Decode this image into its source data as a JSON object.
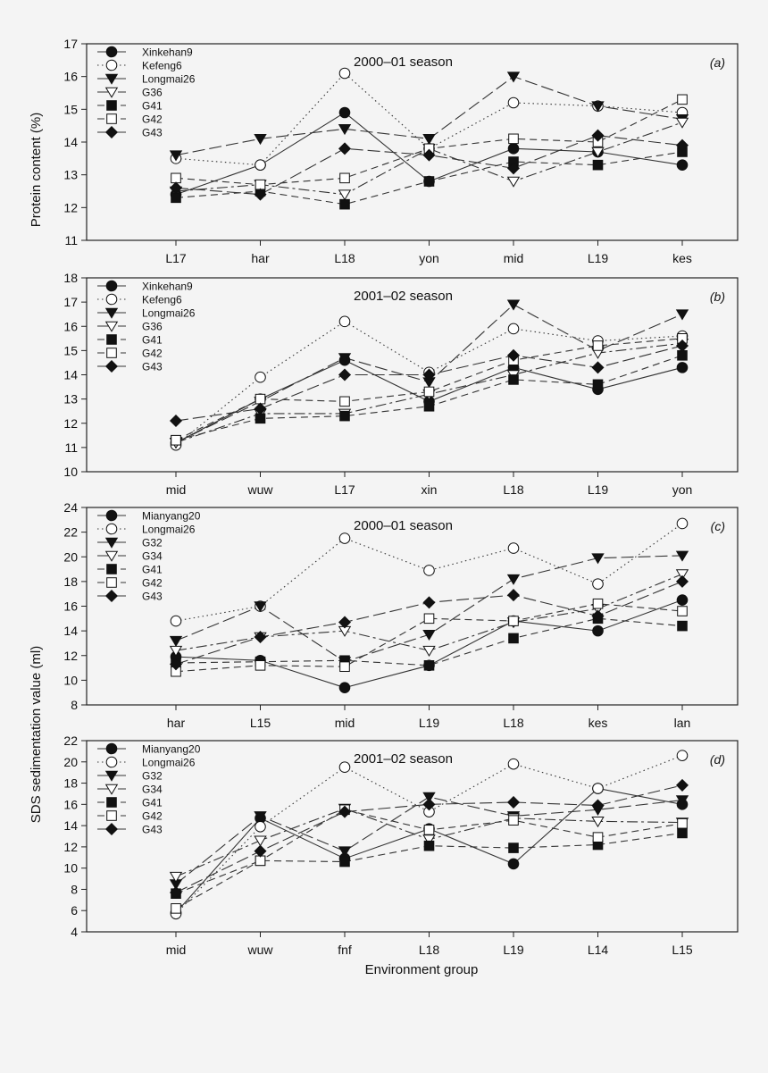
{
  "figure": {
    "ylabel_top": "Protein content (%)",
    "ylabel_bottom": "SDS sedimentation value (ml)",
    "xlabel": "Environment group"
  },
  "chart_data": [
    {
      "type": "line",
      "panel": "(a)",
      "title": "2000–01 season",
      "categories": [
        "L17",
        "har",
        "L18",
        "yon",
        "mid",
        "L19",
        "kes"
      ],
      "ylim": [
        11,
        17
      ],
      "yticks": [
        11,
        12,
        13,
        14,
        15,
        16,
        17
      ],
      "series": [
        {
          "name": "Xinkehan9",
          "marker": "filled-circle",
          "dash": "solid",
          "values": [
            12.4,
            13.3,
            14.9,
            12.8,
            13.8,
            13.7,
            13.3
          ]
        },
        {
          "name": "Kefeng6",
          "marker": "open-circle",
          "dash": "dotted",
          "values": [
            13.5,
            13.3,
            16.1,
            13.8,
            15.2,
            15.1,
            14.9
          ]
        },
        {
          "name": "Longmai26",
          "marker": "filled-triangle",
          "dash": "longdash",
          "values": [
            13.6,
            14.1,
            14.4,
            14.1,
            16.0,
            15.1,
            14.7
          ]
        },
        {
          "name": "G36",
          "marker": "open-triangle",
          "dash": "dashdot",
          "values": [
            12.5,
            12.7,
            12.4,
            13.8,
            12.8,
            13.7,
            14.6
          ]
        },
        {
          "name": "G41",
          "marker": "filled-square",
          "dash": "dashed",
          "values": [
            12.3,
            12.5,
            12.1,
            12.8,
            13.4,
            13.3,
            13.7
          ]
        },
        {
          "name": "G42",
          "marker": "open-square",
          "dash": "dashed",
          "values": [
            12.9,
            12.7,
            12.9,
            13.8,
            14.1,
            14.0,
            15.3
          ]
        },
        {
          "name": "G43",
          "marker": "filled-diamond",
          "dash": "longdash",
          "values": [
            12.6,
            12.4,
            13.8,
            13.6,
            13.2,
            14.2,
            13.9
          ]
        }
      ]
    },
    {
      "type": "line",
      "panel": "(b)",
      "title": "2001–02 season",
      "categories": [
        "mid",
        "wuw",
        "L17",
        "xin",
        "L18",
        "L19",
        "yon"
      ],
      "ylim": [
        10,
        18
      ],
      "yticks": [
        10,
        11,
        12,
        13,
        14,
        15,
        16,
        17,
        18
      ],
      "series": [
        {
          "name": "Xinkehan9",
          "marker": "filled-circle",
          "dash": "solid",
          "values": [
            11.2,
            13.0,
            14.6,
            12.9,
            14.3,
            13.4,
            14.3
          ]
        },
        {
          "name": "Kefeng6",
          "marker": "open-circle",
          "dash": "dotted",
          "values": [
            11.1,
            13.9,
            16.2,
            14.1,
            15.9,
            15.4,
            15.6
          ]
        },
        {
          "name": "Longmai26",
          "marker": "filled-triangle",
          "dash": "longdash",
          "values": [
            11.2,
            12.9,
            14.7,
            13.7,
            16.9,
            15.0,
            16.5
          ]
        },
        {
          "name": "G36",
          "marker": "open-triangle",
          "dash": "dashdot",
          "values": [
            11.2,
            12.4,
            12.4,
            13.2,
            14.0,
            14.9,
            15.3
          ]
        },
        {
          "name": "G41",
          "marker": "filled-square",
          "dash": "dashed",
          "values": [
            11.3,
            12.2,
            12.3,
            12.7,
            13.8,
            13.6,
            14.8
          ]
        },
        {
          "name": "G42",
          "marker": "open-square",
          "dash": "dashed",
          "values": [
            11.3,
            13.0,
            12.9,
            13.3,
            14.6,
            15.2,
            15.5
          ]
        },
        {
          "name": "G43",
          "marker": "filled-diamond",
          "dash": "longdash",
          "values": [
            12.1,
            12.6,
            14.0,
            14.0,
            14.8,
            14.3,
            15.2
          ]
        }
      ]
    },
    {
      "type": "line",
      "panel": "(c)",
      "title": "2000–01 season",
      "categories": [
        "har",
        "L15",
        "mid",
        "L19",
        "L18",
        "kes",
        "lan"
      ],
      "ylim": [
        8,
        24
      ],
      "yticks": [
        8,
        10,
        12,
        14,
        16,
        18,
        20,
        22,
        24
      ],
      "series": [
        {
          "name": "Mianyang20",
          "marker": "filled-circle",
          "dash": "solid",
          "values": [
            11.9,
            11.6,
            9.4,
            11.2,
            14.8,
            14.0,
            16.5
          ]
        },
        {
          "name": "Longmai26",
          "marker": "open-circle",
          "dash": "dotted",
          "values": [
            14.8,
            16.0,
            21.5,
            18.9,
            20.7,
            17.8,
            22.7
          ]
        },
        {
          "name": "G32",
          "marker": "filled-triangle",
          "dash": "longdash",
          "values": [
            13.2,
            16.0,
            11.5,
            13.7,
            18.2,
            19.9,
            20.1
          ]
        },
        {
          "name": "G34",
          "marker": "open-triangle",
          "dash": "dashdot",
          "values": [
            12.4,
            13.5,
            14.0,
            12.4,
            14.7,
            15.8,
            18.6
          ]
        },
        {
          "name": "G41",
          "marker": "filled-square",
          "dash": "dashed",
          "values": [
            11.4,
            11.5,
            11.6,
            11.2,
            13.4,
            15.0,
            14.4
          ]
        },
        {
          "name": "G42",
          "marker": "open-square",
          "dash": "dashed",
          "values": [
            10.7,
            11.2,
            11.1,
            15.0,
            14.8,
            16.2,
            15.6
          ]
        },
        {
          "name": "G43",
          "marker": "filled-diamond",
          "dash": "longdash",
          "values": [
            11.3,
            13.5,
            14.7,
            16.3,
            16.9,
            15.2,
            18.0
          ]
        }
      ]
    },
    {
      "type": "line",
      "panel": "(d)",
      "title": "2001–02 season",
      "categories": [
        "mid",
        "wuw",
        "fnf",
        "L18",
        "L19",
        "L14",
        "L15"
      ],
      "ylim": [
        4,
        22
      ],
      "yticks": [
        4,
        6,
        8,
        10,
        12,
        14,
        16,
        18,
        20,
        22
      ],
      "series": [
        {
          "name": "Mianyang20",
          "marker": "filled-circle",
          "dash": "solid",
          "values": [
            5.8,
            14.7,
            10.9,
            13.7,
            10.4,
            17.5,
            16.0
          ]
        },
        {
          "name": "Longmai26",
          "marker": "open-circle",
          "dash": "dotted",
          "values": [
            5.7,
            13.9,
            19.5,
            15.3,
            19.8,
            17.5,
            20.6
          ]
        },
        {
          "name": "G32",
          "marker": "filled-triangle",
          "dash": "longdash",
          "values": [
            8.5,
            14.9,
            11.6,
            16.7,
            14.9,
            15.5,
            16.4
          ]
        },
        {
          "name": "G34",
          "marker": "open-triangle",
          "dash": "dashdot",
          "values": [
            9.2,
            12.6,
            15.6,
            12.7,
            14.7,
            14.4,
            14.3
          ]
        },
        {
          "name": "G41",
          "marker": "filled-square",
          "dash": "dashed",
          "values": [
            7.6,
            10.7,
            10.6,
            12.1,
            11.9,
            12.2,
            13.3
          ]
        },
        {
          "name": "G42",
          "marker": "open-square",
          "dash": "dashed",
          "values": [
            6.2,
            10.7,
            15.5,
            13.6,
            14.5,
            12.9,
            14.2
          ]
        },
        {
          "name": "G43",
          "marker": "filled-diamond",
          "dash": "longdash",
          "values": [
            7.7,
            11.6,
            15.3,
            16.0,
            16.2,
            15.9,
            17.8
          ]
        }
      ]
    }
  ]
}
